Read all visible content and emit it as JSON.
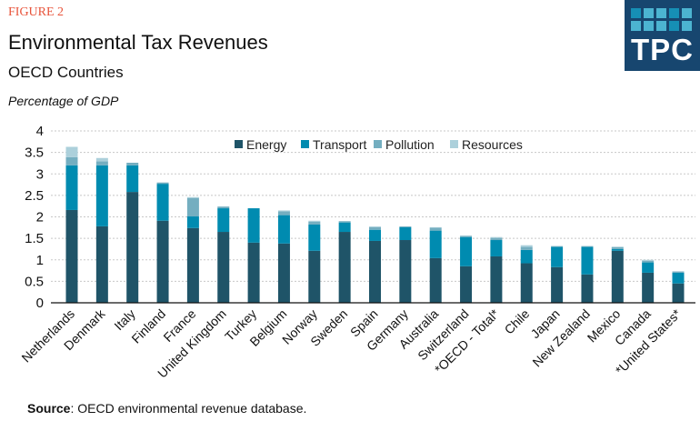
{
  "header": {
    "figure_label": "FIGURE 2",
    "title": "Environmental Tax Revenues",
    "subtitle": "OECD Countries",
    "unit": "Percentage of GDP"
  },
  "logo": {
    "text": "TPC",
    "background": "#17466f"
  },
  "footer": {
    "source_label": "Source",
    "source_text": ": OECD environmental revenue database."
  },
  "chart_data": {
    "type": "bar",
    "stacked": true,
    "title": "Environmental Tax Revenues",
    "subtitle": "OECD Countries",
    "ylabel": "Percentage of GDP",
    "ylim": [
      0,
      4
    ],
    "yticks": [
      "0",
      "0.5",
      "1",
      "1.5",
      "2",
      "2.5",
      "3",
      "3.5",
      "4"
    ],
    "grid": true,
    "legend_position": "top-right",
    "categories": [
      "Netherlands",
      "Denmark",
      "Italy",
      "Finland",
      "France",
      "United Kingdom",
      "Turkey",
      "Belgium",
      "Norway",
      "Sweden",
      "Spain",
      "Germany",
      "Australia",
      "Switzerland",
      "*OECD - Total*",
      "Chile",
      "Japan",
      "New Zealand",
      "Mexico",
      "Canada",
      "*United States*"
    ],
    "series": [
      {
        "name": "Energy",
        "color": "#1f5468",
        "values": [
          2.16,
          1.78,
          2.58,
          1.91,
          1.74,
          1.65,
          1.4,
          1.38,
          1.21,
          1.65,
          1.44,
          1.46,
          1.04,
          0.85,
          1.08,
          0.92,
          0.83,
          0.66,
          1.21,
          0.7,
          0.45
        ]
      },
      {
        "name": "Transport",
        "color": "#008bb0",
        "values": [
          1.04,
          1.42,
          0.62,
          0.86,
          0.27,
          0.55,
          0.8,
          0.66,
          0.61,
          0.22,
          0.26,
          0.3,
          0.64,
          0.68,
          0.38,
          0.31,
          0.47,
          0.64,
          0.04,
          0.24,
          0.25
        ]
      },
      {
        "name": "Pollution",
        "color": "#74aec0",
        "values": [
          0.19,
          0.09,
          0.06,
          0.03,
          0.43,
          0.04,
          0.0,
          0.09,
          0.07,
          0.03,
          0.06,
          0.02,
          0.07,
          0.03,
          0.05,
          0.07,
          0.02,
          0.02,
          0.05,
          0.04,
          0.03
        ]
      },
      {
        "name": "Resources",
        "color": "#acd0db",
        "values": [
          0.24,
          0.08,
          0.0,
          0.0,
          0.02,
          0.0,
          0.0,
          0.02,
          0.02,
          0.0,
          0.02,
          0.0,
          0.01,
          0.0,
          0.02,
          0.04,
          0.0,
          0.0,
          0.0,
          0.02,
          0.0
        ]
      }
    ]
  }
}
